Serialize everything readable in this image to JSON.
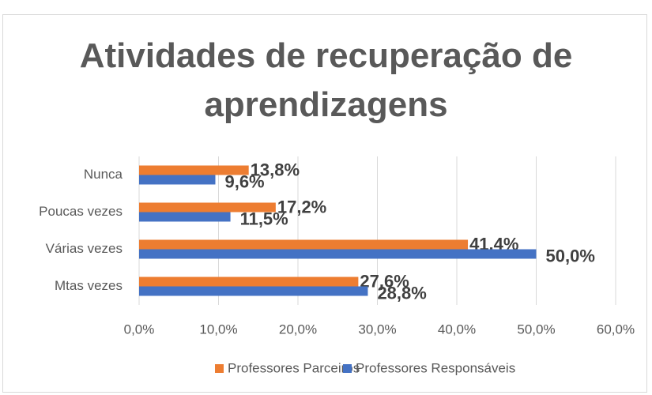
{
  "chart_data": {
    "type": "bar",
    "orientation": "horizontal",
    "title": "Atividades de recuperação de aprendizagens",
    "categories": [
      "Nunca",
      "Poucas vezes",
      "Várias vezes",
      "Mtas vezes"
    ],
    "series": [
      {
        "name": "Professores Parceiros",
        "color": "#ed7d31",
        "values": [
          13.8,
          17.2,
          41.4,
          27.6
        ],
        "value_labels": [
          "13,8%",
          "17,2%",
          "41,4%",
          "27,6%"
        ]
      },
      {
        "name": "Professores Responsáveis",
        "color": "#4472c4",
        "values": [
          9.6,
          11.5,
          50.0,
          28.8
        ],
        "value_labels": [
          "9,6%",
          "11,5%",
          "50,0%",
          "28,8%"
        ]
      }
    ],
    "xlim": [
      0,
      60
    ],
    "xticks": [
      {
        "value": 0,
        "label": "0,0%"
      },
      {
        "value": 10,
        "label": "10,0%"
      },
      {
        "value": 20,
        "label": "20,0%"
      },
      {
        "value": 30,
        "label": "30,0%"
      },
      {
        "value": 40,
        "label": "40,0%"
      },
      {
        "value": 50,
        "label": "50,0%"
      },
      {
        "value": 60,
        "label": "60,0%"
      }
    ],
    "grid": true,
    "legend": "bottom"
  }
}
